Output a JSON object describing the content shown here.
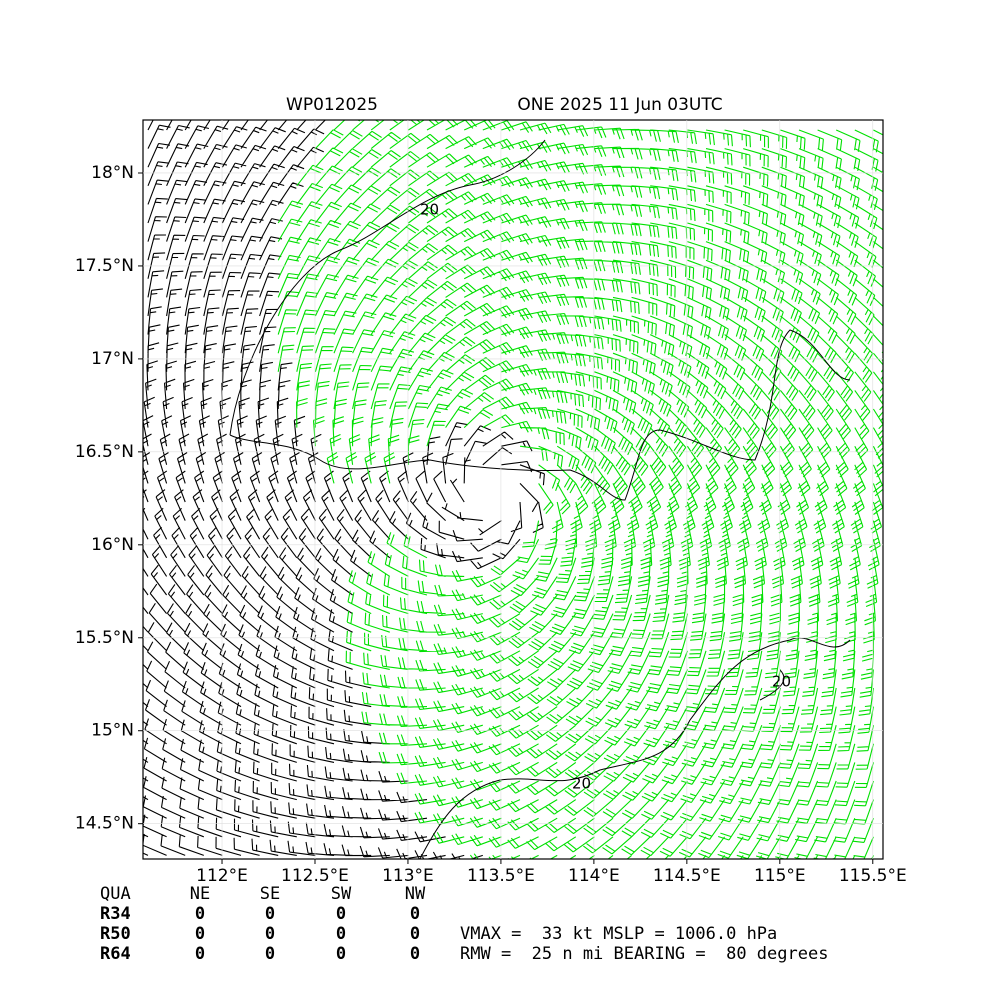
{
  "chart_data": {
    "type": "wind-barb-map",
    "title_left": "WP012025",
    "title_right": "ONE 2025 11 Jun 03UTC",
    "xlim": [
      111.575,
      115.555
    ],
    "ylim": [
      14.31,
      18.285
    ],
    "xticks": [
      {
        "value": 112,
        "label": "112°E"
      },
      {
        "value": 112.5,
        "label": "112.5°E"
      },
      {
        "value": 113,
        "label": "113°E"
      },
      {
        "value": 113.5,
        "label": "113.5°E"
      },
      {
        "value": 114,
        "label": "114°E"
      },
      {
        "value": 114.5,
        "label": "114.5°E"
      },
      {
        "value": 115,
        "label": "115°E"
      },
      {
        "value": 115.5,
        "label": "115.5°E"
      }
    ],
    "yticks": [
      {
        "value": 14.5,
        "label": "14.5°N"
      },
      {
        "value": 15,
        "label": "15°N"
      },
      {
        "value": 15.5,
        "label": "15.5°N"
      },
      {
        "value": 16,
        "label": "16°N"
      },
      {
        "value": 16.5,
        "label": "16.5°N"
      },
      {
        "value": 17,
        "label": "17°N"
      },
      {
        "value": 17.5,
        "label": "17.5°N"
      },
      {
        "value": 18,
        "label": "18°N"
      }
    ],
    "contour_labels": [
      "20",
      "20",
      "20"
    ]
  },
  "radii_table": {
    "header": [
      "QUA",
      "NE",
      "SE",
      "SW",
      "NW"
    ],
    "rows": [
      [
        "R34",
        "0",
        "0",
        "0",
        "0"
      ],
      [
        "R50",
        "0",
        "0",
        "0",
        "0"
      ],
      [
        "R64",
        "0",
        "0",
        "0",
        "0"
      ]
    ]
  },
  "stats": [
    "VMAX =  33 kt MSLP = 1006.0 hPa",
    "RMW =  25 n mi BEARING =  80 degrees"
  ]
}
